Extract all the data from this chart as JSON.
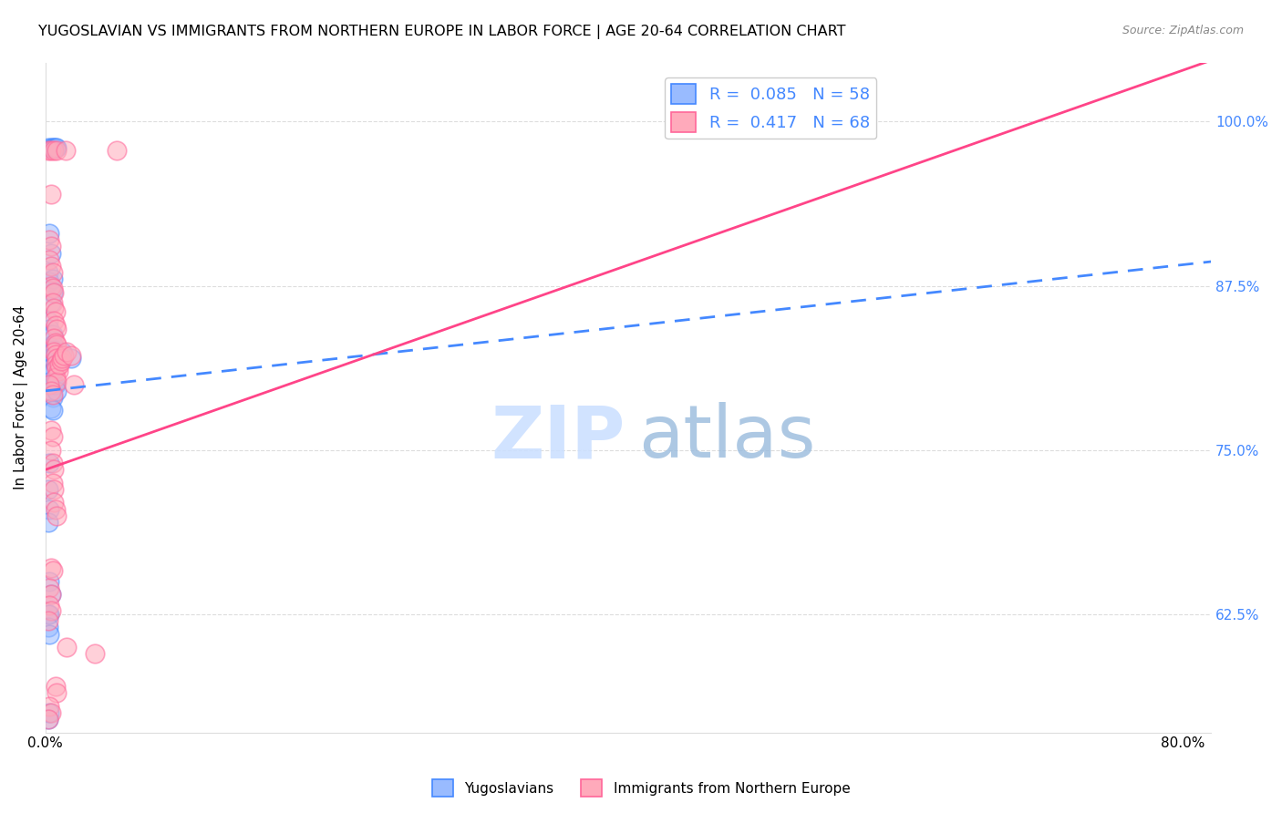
{
  "title": "YUGOSLAVIAN VS IMMIGRANTS FROM NORTHERN EUROPE IN LABOR FORCE | AGE 20-64 CORRELATION CHART",
  "source": "Source: ZipAtlas.com",
  "ylabel": "In Labor Force | Age 20-64",
  "xlim": [
    0.0,
    0.82
  ],
  "ylim": [
    0.535,
    1.045
  ],
  "blue_R": 0.085,
  "blue_N": 58,
  "pink_R": 0.417,
  "pink_N": 68,
  "legend_color": "#4488ff",
  "blue_color": "#99bbff",
  "pink_color": "#ffaabb",
  "blue_edge_color": "#4488ff",
  "pink_edge_color": "#ff6699",
  "blue_line_color": "#4488ff",
  "pink_line_color": "#ff4488",
  "right_axis_color": "#4488ff",
  "grid_color": "#dddddd",
  "watermark_zip_color": "#cce0ff",
  "watermark_atlas_color": "#99bbdd",
  "blue_scatter": [
    [
      0.002,
      0.98
    ],
    [
      0.004,
      0.98
    ],
    [
      0.005,
      0.98
    ],
    [
      0.006,
      0.98
    ],
    [
      0.007,
      0.98
    ],
    [
      0.008,
      0.98
    ],
    [
      0.003,
      0.915
    ],
    [
      0.004,
      0.9
    ],
    [
      0.002,
      0.885
    ],
    [
      0.003,
      0.878
    ],
    [
      0.004,
      0.872
    ],
    [
      0.005,
      0.88
    ],
    [
      0.004,
      0.862
    ],
    [
      0.005,
      0.87
    ],
    [
      0.002,
      0.848
    ],
    [
      0.003,
      0.842
    ],
    [
      0.004,
      0.838
    ],
    [
      0.005,
      0.838
    ],
    [
      0.004,
      0.828
    ],
    [
      0.005,
      0.83
    ],
    [
      0.006,
      0.826
    ],
    [
      0.007,
      0.825
    ],
    [
      0.003,
      0.82
    ],
    [
      0.004,
      0.82
    ],
    [
      0.005,
      0.82
    ],
    [
      0.006,
      0.818
    ],
    [
      0.003,
      0.812
    ],
    [
      0.004,
      0.812
    ],
    [
      0.005,
      0.81
    ],
    [
      0.006,
      0.81
    ],
    [
      0.003,
      0.802
    ],
    [
      0.004,
      0.8
    ],
    [
      0.005,
      0.8
    ],
    [
      0.006,
      0.8
    ],
    [
      0.003,
      0.793
    ],
    [
      0.004,
      0.792
    ],
    [
      0.005,
      0.79
    ],
    [
      0.004,
      0.782
    ],
    [
      0.005,
      0.78
    ],
    [
      0.007,
      0.8
    ],
    [
      0.008,
      0.82
    ],
    [
      0.01,
      0.818
    ],
    [
      0.012,
      0.825
    ],
    [
      0.008,
      0.795
    ],
    [
      0.018,
      0.82
    ],
    [
      0.003,
      0.74
    ],
    [
      0.002,
      0.72
    ],
    [
      0.003,
      0.705
    ],
    [
      0.002,
      0.695
    ],
    [
      0.003,
      0.65
    ],
    [
      0.004,
      0.64
    ],
    [
      0.002,
      0.625
    ],
    [
      0.003,
      0.625
    ],
    [
      0.002,
      0.615
    ],
    [
      0.003,
      0.61
    ],
    [
      0.002,
      0.545
    ],
    [
      0.003,
      0.55
    ]
  ],
  "pink_scatter": [
    [
      0.002,
      0.978
    ],
    [
      0.004,
      0.978
    ],
    [
      0.006,
      0.978
    ],
    [
      0.008,
      0.978
    ],
    [
      0.014,
      0.978
    ],
    [
      0.05,
      0.978
    ],
    [
      0.004,
      0.945
    ],
    [
      0.003,
      0.91
    ],
    [
      0.004,
      0.905
    ],
    [
      0.003,
      0.895
    ],
    [
      0.004,
      0.89
    ],
    [
      0.005,
      0.885
    ],
    [
      0.004,
      0.875
    ],
    [
      0.005,
      0.873
    ],
    [
      0.006,
      0.87
    ],
    [
      0.005,
      0.862
    ],
    [
      0.006,
      0.858
    ],
    [
      0.007,
      0.855
    ],
    [
      0.006,
      0.848
    ],
    [
      0.007,
      0.845
    ],
    [
      0.008,
      0.842
    ],
    [
      0.006,
      0.835
    ],
    [
      0.007,
      0.832
    ],
    [
      0.008,
      0.83
    ],
    [
      0.006,
      0.825
    ],
    [
      0.007,
      0.823
    ],
    [
      0.008,
      0.82
    ],
    [
      0.007,
      0.815
    ],
    [
      0.008,
      0.812
    ],
    [
      0.009,
      0.81
    ],
    [
      0.007,
      0.805
    ],
    [
      0.008,
      0.802
    ],
    [
      0.01,
      0.815
    ],
    [
      0.011,
      0.818
    ],
    [
      0.012,
      0.82
    ],
    [
      0.013,
      0.822
    ],
    [
      0.015,
      0.825
    ],
    [
      0.018,
      0.822
    ],
    [
      0.003,
      0.8
    ],
    [
      0.004,
      0.795
    ],
    [
      0.005,
      0.792
    ],
    [
      0.02,
      0.8
    ],
    [
      0.004,
      0.765
    ],
    [
      0.005,
      0.76
    ],
    [
      0.004,
      0.75
    ],
    [
      0.005,
      0.74
    ],
    [
      0.006,
      0.735
    ],
    [
      0.005,
      0.725
    ],
    [
      0.006,
      0.72
    ],
    [
      0.006,
      0.71
    ],
    [
      0.007,
      0.705
    ],
    [
      0.008,
      0.7
    ],
    [
      0.004,
      0.66
    ],
    [
      0.005,
      0.658
    ],
    [
      0.003,
      0.645
    ],
    [
      0.004,
      0.64
    ],
    [
      0.003,
      0.632
    ],
    [
      0.004,
      0.628
    ],
    [
      0.002,
      0.62
    ],
    [
      0.015,
      0.6
    ],
    [
      0.035,
      0.595
    ],
    [
      0.007,
      0.57
    ],
    [
      0.008,
      0.565
    ],
    [
      0.003,
      0.555
    ],
    [
      0.004,
      0.55
    ],
    [
      0.002,
      0.545
    ]
  ]
}
